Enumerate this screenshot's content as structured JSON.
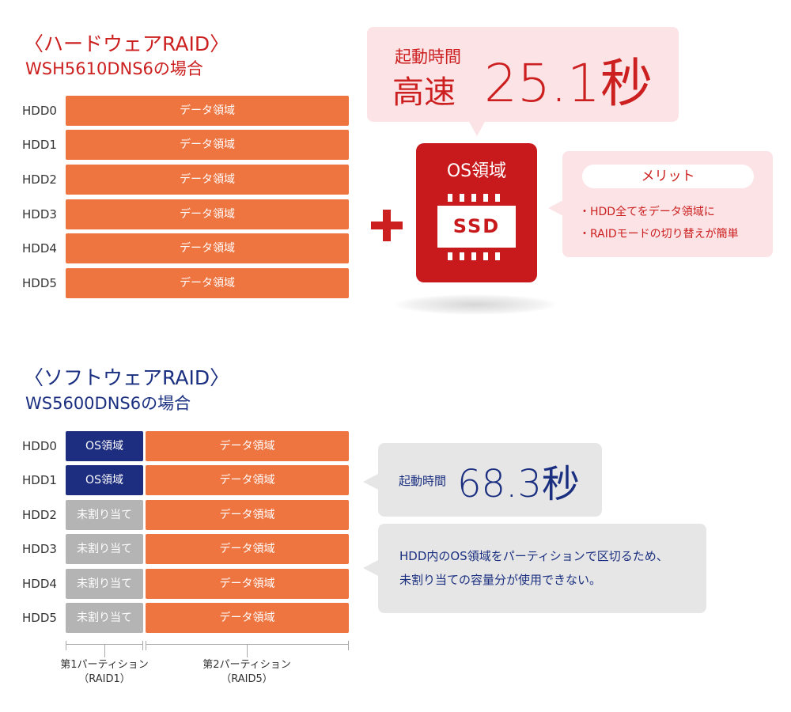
{
  "hardware": {
    "title": "〈ハードウェアRAID〉",
    "subtitle": "WSH5610DNS6の場合",
    "rows": [
      {
        "label": "HDD0",
        "data": "データ領域"
      },
      {
        "label": "HDD1",
        "data": "データ領域"
      },
      {
        "label": "HDD2",
        "data": "データ領域"
      },
      {
        "label": "HDD3",
        "data": "データ領域"
      },
      {
        "label": "HDD4",
        "data": "データ領域"
      },
      {
        "label": "HDD5",
        "data": "データ領域"
      }
    ],
    "boot": {
      "label": "起動時間",
      "speed": "高速",
      "time": "25.1秒"
    },
    "ssd": {
      "os_label": "OS領域",
      "chip_label": "SSD"
    },
    "merit": {
      "title": "メリット",
      "items": [
        "・HDD全てをデータ領域に",
        "・RAIDモードの切り替えが簡単"
      ]
    },
    "colors": {
      "accent": "#cc1f1f",
      "data_bar": "#ee7440",
      "bubble": "#fbe3e6"
    }
  },
  "software": {
    "title": "〈ソフトウェアRAID〉",
    "subtitle": "WS5600DNS6の場合",
    "rows": [
      {
        "label": "HDD0",
        "part1": "OS領域",
        "part1_type": "os",
        "data": "データ領域"
      },
      {
        "label": "HDD1",
        "part1": "OS領域",
        "part1_type": "os",
        "data": "データ領域"
      },
      {
        "label": "HDD2",
        "part1": "未割り当て",
        "part1_type": "free",
        "data": "データ領域"
      },
      {
        "label": "HDD3",
        "part1": "未割り当て",
        "part1_type": "free",
        "data": "データ領域"
      },
      {
        "label": "HDD4",
        "part1": "未割り当て",
        "part1_type": "free",
        "data": "データ領域"
      },
      {
        "label": "HDD5",
        "part1": "未割り当て",
        "part1_type": "free",
        "data": "データ領域"
      }
    ],
    "boot": {
      "label": "起動時間",
      "time": "68.3秒"
    },
    "note_lines": [
      "HDD内のOS領域をパーティションで区切るため、",
      "未割り当ての容量分が使用できない。"
    ],
    "partitions": [
      {
        "name": "第1パーティション",
        "raid": "（RAID1）"
      },
      {
        "name": "第2パーティション",
        "raid": "（RAID5）"
      }
    ],
    "colors": {
      "accent": "#1a2f80",
      "os_bar": "#1d2e80",
      "free_bar": "#b4b4b4",
      "bubble": "#e6e6e6"
    }
  }
}
